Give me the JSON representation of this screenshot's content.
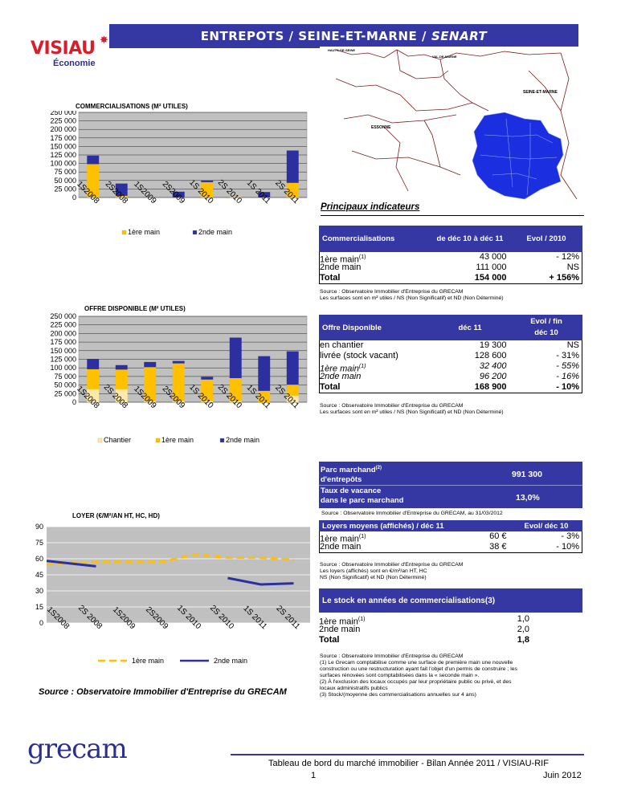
{
  "header": {
    "title_main": "ENTREPOTS / SEINE-ET-MARNE /",
    "title_italic": "SENART",
    "logo_text": "VISIAU",
    "logo_sub": "Économie"
  },
  "map": {
    "labels": [
      "HAUTS-DE-SEINE",
      "VAL-DE-MARNE",
      "SEINE-ET-MARNE",
      "ESSONNE"
    ],
    "fill": "#1b2fe0"
  },
  "colors": {
    "accent": "#3537a3",
    "yellow": "#ffc000",
    "blue": "#2b2f9f",
    "chantier": "#ffe9a8",
    "plot_bg": "#c0c0c0",
    "dash": "#ffc000"
  },
  "chart1": {
    "title": "COMMERCIALISATIONS (M² UTILES)",
    "legend": [
      "1ère main",
      "2nde main"
    ],
    "chart_data": {
      "type": "bar",
      "categories": [
        "1S2008",
        "2S2008",
        "1S2009",
        "2S2009",
        "1S 2010",
        "2S 2010",
        "1S 2011",
        "2S 2011"
      ],
      "ylim": [
        0,
        250000
      ],
      "yticks": [
        "0",
        "25 000",
        "50 000",
        "75 000",
        "100 000",
        "125 000",
        "150 000",
        "175 000",
        "200 000",
        "225 000",
        "250 000"
      ],
      "series": [
        {
          "name": "1ère main",
          "values": [
            98000,
            5000,
            0,
            0,
            45000,
            3000,
            0,
            43000
          ]
        },
        {
          "name": "2nde main",
          "values": [
            25000,
            36000,
            0,
            17000,
            5000,
            0,
            16000,
            95000
          ]
        }
      ]
    }
  },
  "chart2": {
    "title": "OFFRE DISPONIBLE (M² UTILES)",
    "legend": [
      "Chantier",
      "1ère main",
      "2nde main"
    ],
    "chart_data": {
      "type": "bar",
      "categories": [
        "1S2008",
        "2S 2008",
        "1S2009",
        "2S2009",
        "1S 2010",
        "2S 2010",
        "1S 2011",
        "2S 2011"
      ],
      "ylim": [
        0,
        250000
      ],
      "yticks": [
        "0",
        "25 000",
        "50 000",
        "75 000",
        "100 000",
        "125 000",
        "150 000",
        "175 000",
        "200 000",
        "225 000",
        "250 000"
      ],
      "series": [
        {
          "name": "Chantier",
          "values": [
            38000,
            38000,
            3000,
            3000,
            3000,
            3000,
            0,
            19000
          ]
        },
        {
          "name": "1ère main",
          "values": [
            58000,
            57000,
            99000,
            110000,
            63000,
            67000,
            33000,
            32000
          ]
        },
        {
          "name": "2nde main",
          "values": [
            30000,
            13000,
            15000,
            7000,
            8000,
            118000,
            101000,
            97000
          ]
        }
      ]
    }
  },
  "chart3": {
    "title": "LOYER (€/M²/AN HT, HC, HD)",
    "legend": [
      "1ère main",
      "2nde main"
    ],
    "chart_data": {
      "type": "line",
      "categories": [
        "1S2008",
        "2S 2008",
        "1S2009",
        "2S2009",
        "1S 2010",
        "2S 2010",
        "1S 2011",
        "2S 2011"
      ],
      "ylim": [
        0,
        90
      ],
      "yticks": [
        "0",
        "15",
        "30",
        "45",
        "60",
        "75",
        "90"
      ],
      "series": [
        {
          "name": "1ère main",
          "values": [
            55,
            57,
            57,
            57,
            64,
            61,
            61,
            59
          ]
        },
        {
          "name": "2nde main",
          "values": [
            58,
            53,
            null,
            null,
            null,
            42,
            36,
            37
          ]
        }
      ]
    }
  },
  "indicators": {
    "title": "Principaux indicateurs",
    "commercialisations": {
      "header": "Commercialisations",
      "col1": "de déc 10 à déc 11",
      "col2": "Evol / 2010",
      "rows": [
        {
          "label": "1ère main",
          "sup": "(1)",
          "value": "43 000",
          "evol": "- 12%"
        },
        {
          "label": "2nde main",
          "sup": "",
          "value": "111 000",
          "evol": "NS"
        },
        {
          "label": "Total",
          "sup": "",
          "value": "154 000",
          "evol": "+ 156%"
        }
      ],
      "source1": "Source : Observatoire Immobilier d'Entreprise du GRECAM",
      "source2": "Les surfaces sont en m² utiles / NS (Non Significatif) et ND (Non Déterminé)"
    },
    "offre": {
      "header": "Offre Disponible",
      "col1": "déc 11",
      "col2": "Evol / fin déc 10",
      "rows": [
        {
          "label": "en chantier",
          "sup": "",
          "value": "19 300",
          "evol": "NS"
        },
        {
          "label": "livrée (stock vacant)",
          "sup": "",
          "value": "128 600",
          "evol": "- 31%"
        },
        {
          "label": "1ère main",
          "sup": "(1)",
          "value": "32 400",
          "evol": "- 55%"
        },
        {
          "label": "2nde main",
          "sup": "",
          "value": "96 200",
          "evol": "- 16%"
        },
        {
          "label": "Total",
          "sup": "",
          "value": "168 900",
          "evol": "- 10%"
        }
      ],
      "source1": "Source : Observatoire Immobilier d'Entreprise du GRECAM",
      "source2": "Les surfaces sont en m² utiles / NS (Non Significatif) et ND (Non Déterminé)"
    },
    "parc": {
      "label1a": "Parc marchand",
      "label1sup": "(2)",
      "label1b": "d'entrepôts",
      "value1": "991 300",
      "label2a": "Taux de vacance",
      "label2b": "dans le parc marchand",
      "value2": "13,0%",
      "source": "Source : Observatoire Immobilier d'Entreprise du GRECAM, au 31/03/2012"
    },
    "loyers": {
      "header": "Loyers moyens (affichés) / déc 11",
      "col2": "Evol/ déc 10",
      "rows": [
        {
          "label": "1ère main",
          "sup": "(1)",
          "value": "60 €",
          "evol": "- 3%"
        },
        {
          "label": "2nde  main",
          "sup": "",
          "value": "38 €",
          "evol": "- 10%"
        }
      ],
      "source1": "Source : Observatoire Immobilier d'Entreprise du GRECAM",
      "source2": "Les loyers (affichés) sont en €/m²/an HT, HC",
      "source3": "NS (Non Significatif) et ND (Non Déterminé)"
    },
    "stock": {
      "header": "Le stock en années de commercialisations(3)",
      "rows": [
        {
          "label": "1ère main",
          "sup": "(1)",
          "value": "1,0"
        },
        {
          "label": "2nde  main",
          "sup": "",
          "value": "2,0"
        },
        {
          "label": "Total",
          "sup": "",
          "value": "1,8"
        }
      ],
      "notes": [
        "Source : Observatoire Immobilier d'Entreprise du GRECAM",
        "(1) Le Grecam comptabilise comme une surface de première main une nouvelle",
        "construction ou une restructuration ayant fait l'objet d'un permis de construire ; les",
        "surfaces rénovées sont comptabilisées dans la « seconde main ».",
        "(2) À l'exclusion des locaux occupés par leur propriétaire public ou privé, et des",
        "locaux administratifs publics",
        "(3) Stock/(moyenne des commercialisations annuelles sur 4 ans)"
      ]
    }
  },
  "left_source": "Source : Observatoire Immobilier d'Entreprise du GRECAM",
  "footer": {
    "brand": "grecam",
    "line1": "Tableau de bord du marché immobilier - Bilan Année 2011 / VISIAU-RIF",
    "page": "1",
    "date": "Juin 2012"
  }
}
